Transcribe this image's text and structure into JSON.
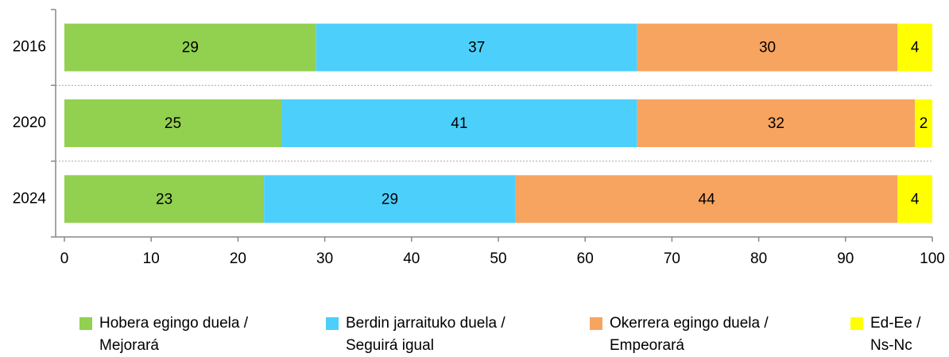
{
  "chart_data": {
    "type": "stacked-bar-horizontal",
    "categories": [
      "2016",
      "2020",
      "2024"
    ],
    "series": [
      {
        "name": "Hobera egingo duela /\nMejorará",
        "color": "#92d050",
        "values": [
          29,
          25,
          23
        ]
      },
      {
        "name": "Berdin jarraituko duela /\nSeguirá igual",
        "color": "#4dcffc",
        "values": [
          37,
          41,
          29
        ]
      },
      {
        "name": "Okerrera egingo duela /\nEmpeorará",
        "color": "#f7a460",
        "values": [
          30,
          32,
          44
        ]
      },
      {
        "name": "Ed-Ee /\nNs-Nc",
        "color": "#ffff00",
        "values": [
          4,
          2,
          4
        ]
      }
    ],
    "xlim": [
      0,
      100
    ],
    "xticks": [
      0,
      10,
      20,
      30,
      40,
      50,
      60,
      70,
      80,
      90,
      100
    ],
    "legend": "bottom"
  }
}
